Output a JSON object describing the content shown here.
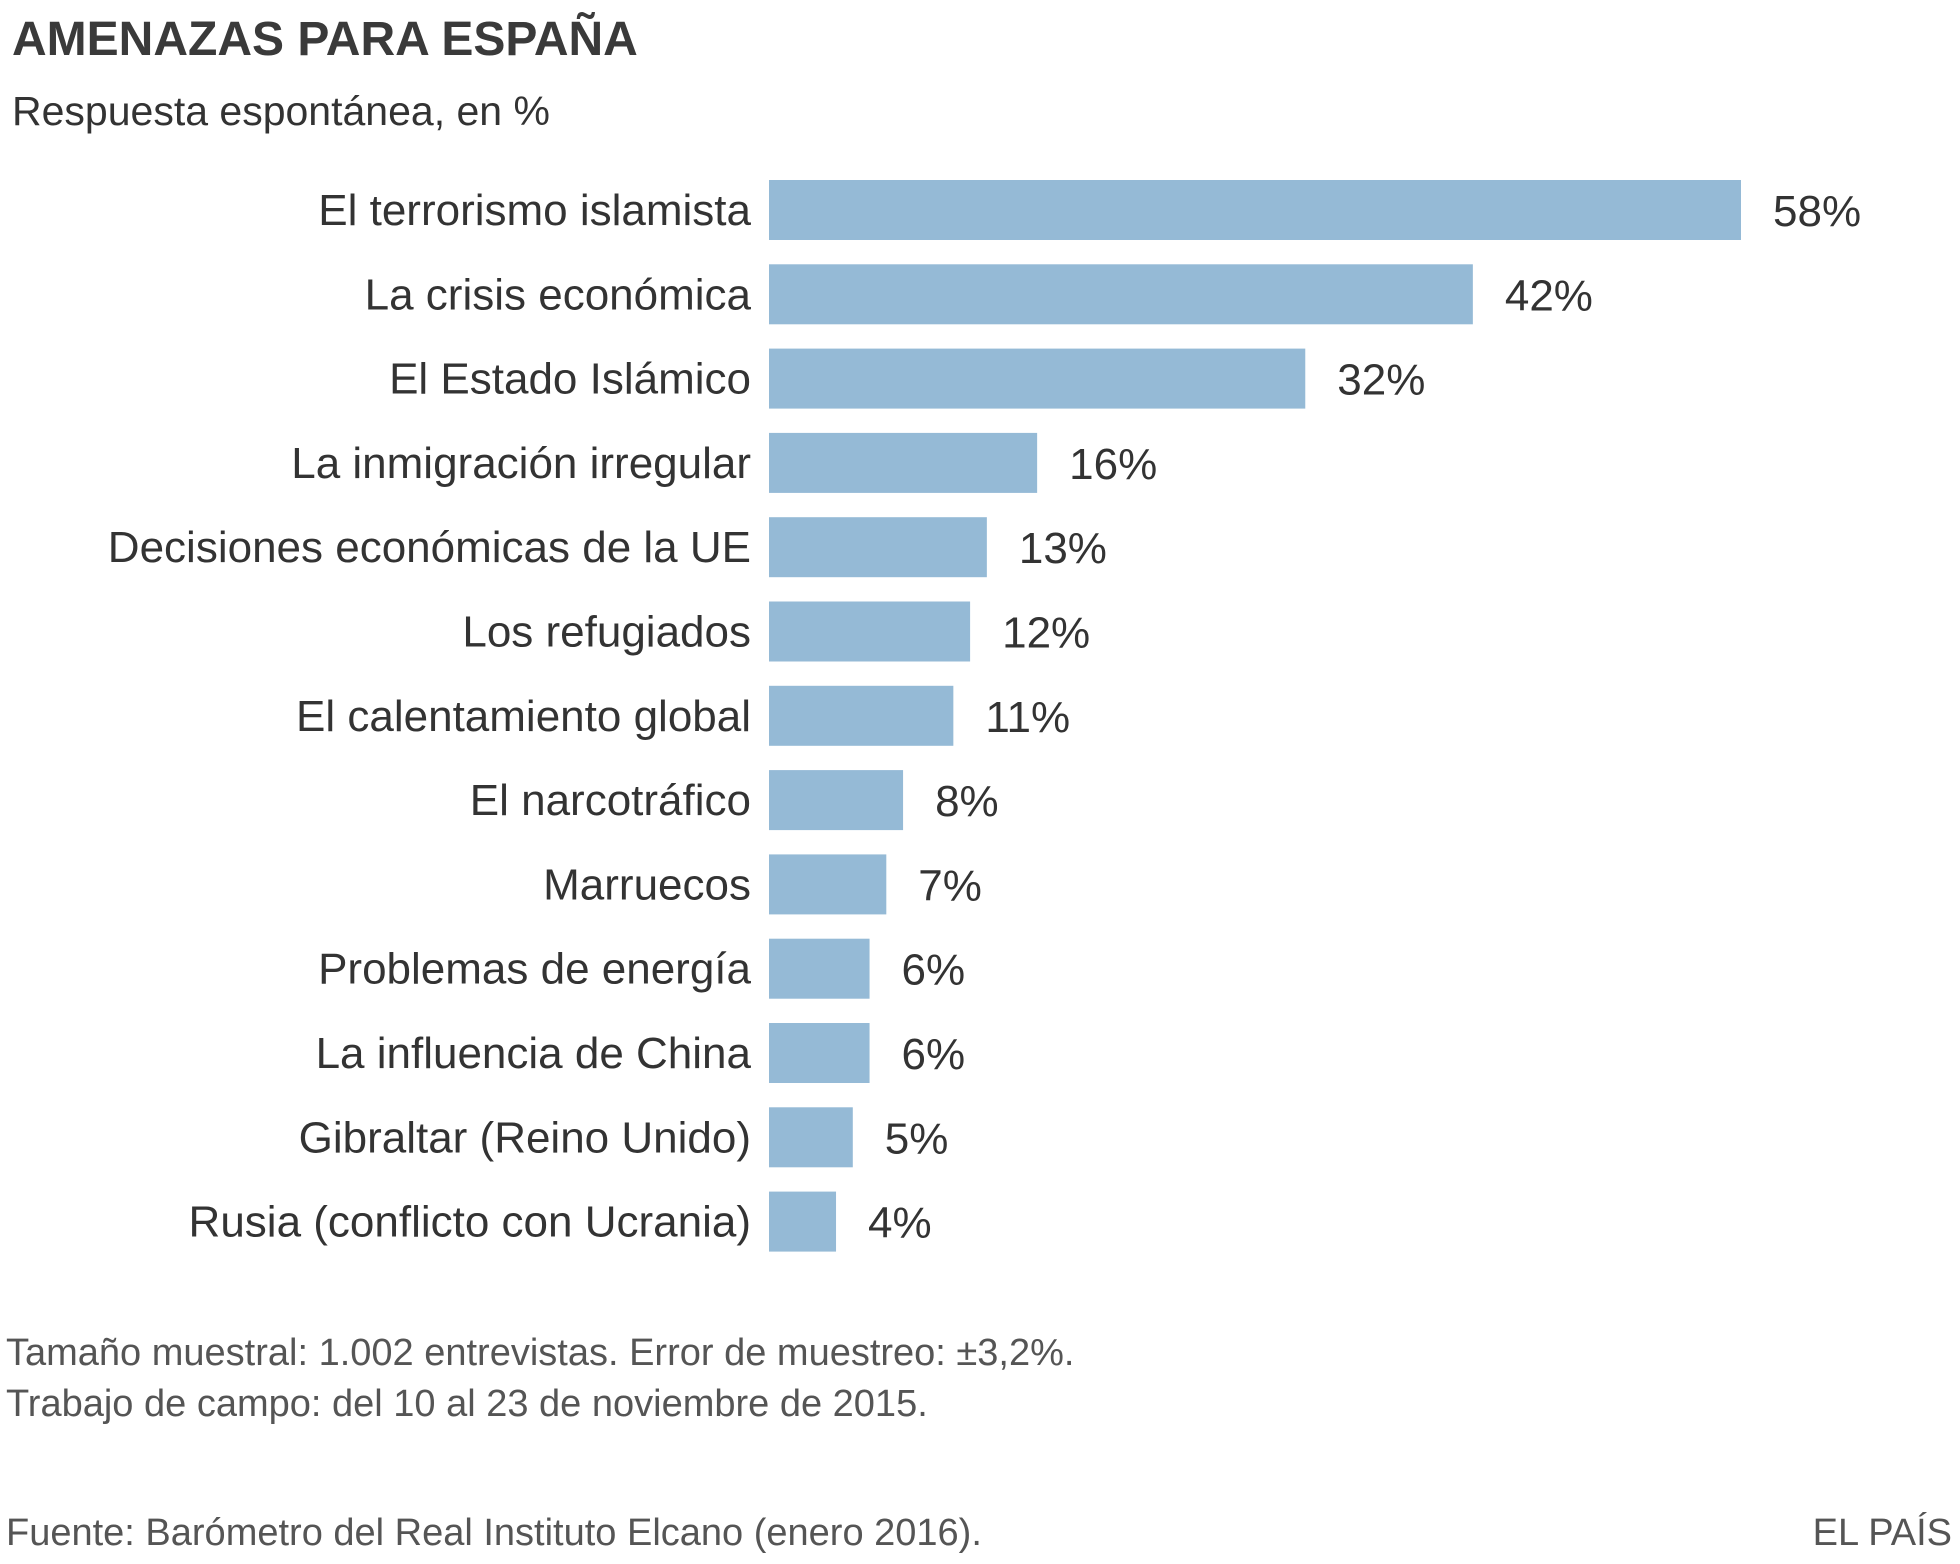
{
  "chart_data": {
    "type": "bar",
    "orientation": "horizontal",
    "title": "AMENAZAS PARA ESPAÑA",
    "subtitle": "Respuesta espontánea, en %",
    "categories": [
      "El terrorismo islamista",
      "La crisis económica",
      "El Estado Islámico",
      "La inmigración irregular",
      "Decisiones económicas de la UE",
      "Los refugiados",
      "El calentamiento global",
      "El narcotráfico",
      "Marruecos",
      "Problemas de energía",
      "La influencia de China",
      "Gibraltar (Reino Unido)",
      "Rusia (conflicto con Ucrania)"
    ],
    "values": [
      58,
      42,
      32,
      16,
      13,
      12,
      11,
      8,
      7,
      6,
      6,
      5,
      4
    ],
    "value_labels": [
      "58%",
      "42%",
      "32%",
      "16%",
      "13%",
      "12%",
      "11%",
      "8%",
      "7%",
      "6%",
      "6%",
      "5%",
      "4%"
    ],
    "xlim": [
      0,
      58
    ],
    "grid": false,
    "bar_color": "#95bad6"
  },
  "notes": {
    "line1": "Tamaño muestral: 1.002 entrevistas. Error de muestreo: ±3,2%.",
    "line2": "Trabajo de campo: del 10 al 23 de noviembre de 2015.",
    "source": "Fuente: Barómetro del Real Instituto Elcano (enero 2016).",
    "brand": "EL PAÍS"
  }
}
